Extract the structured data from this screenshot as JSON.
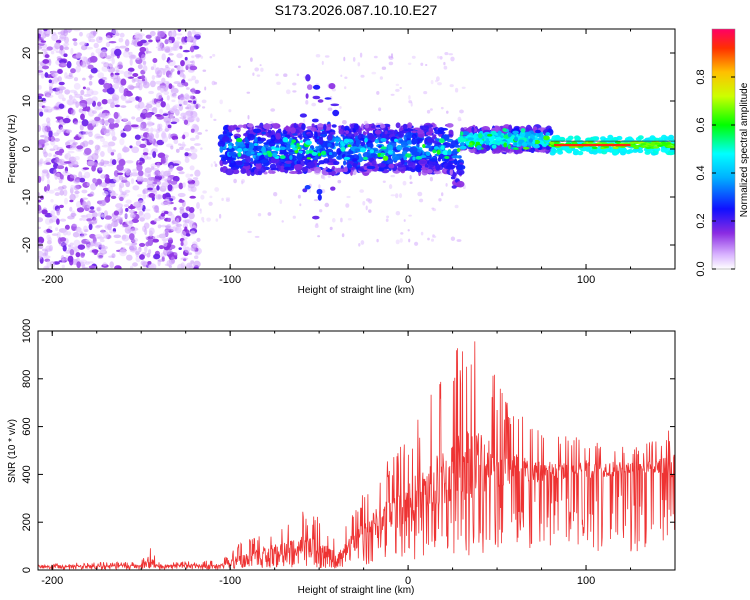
{
  "title": "S173.2026.087.10.10.E27",
  "chart_data": [
    {
      "type": "heatmap",
      "xlabel": "Height of straight line (km)",
      "ylabel": "Frequency (Hz)",
      "xlim": [
        -208,
        150
      ],
      "ylim": [
        -25,
        25
      ],
      "xticks": [
        -200,
        -100,
        0,
        100
      ],
      "yticks": [
        -20,
        -10,
        0,
        10,
        20
      ],
      "colorbar": {
        "label": "Normalized spectral amplitude",
        "range": [
          0,
          1
        ],
        "ticks": [
          0.0,
          0.2,
          0.4,
          0.6,
          0.8
        ],
        "tick_labels": [
          "0.0",
          "0.2",
          "0.4",
          "0.6",
          "0.8"
        ]
      },
      "band": {
        "noise_region_x": [
          -208,
          -118
        ],
        "signal_start_x": -105,
        "tone_x": [
          80,
          150
        ],
        "tone_frequency_hz": 0.8
      }
    },
    {
      "type": "line",
      "xlabel": "Height of straight line (km)",
      "ylabel": "SNR (10 * v/v)",
      "xlim": [
        -208,
        150
      ],
      "ylim": [
        0,
        1000
      ],
      "xticks": [
        -200,
        -100,
        0,
        100
      ],
      "yticks": [
        0,
        200,
        400,
        600,
        800,
        1000
      ],
      "series": [
        {
          "name": "SNR",
          "color": "#ee3333",
          "envelope": [
            {
              "x": -208,
              "base": 12,
              "peak": 30
            },
            {
              "x": -150,
              "base": 12,
              "peak": 35
            },
            {
              "x": -146,
              "base": 20,
              "peak": 105
            },
            {
              "x": -140,
              "base": 12,
              "peak": 35
            },
            {
              "x": -105,
              "base": 14,
              "peak": 40
            },
            {
              "x": -95,
              "base": 30,
              "peak": 110
            },
            {
              "x": -75,
              "base": 50,
              "peak": 180
            },
            {
              "x": -60,
              "base": 60,
              "peak": 250
            },
            {
              "x": -50,
              "base": 40,
              "peak": 220
            },
            {
              "x": -40,
              "base": 30,
              "peak": 130
            },
            {
              "x": -30,
              "base": 80,
              "peak": 260
            },
            {
              "x": -20,
              "base": 120,
              "peak": 400
            },
            {
              "x": -10,
              "base": 160,
              "peak": 480
            },
            {
              "x": 0,
              "base": 200,
              "peak": 580
            },
            {
              "x": 10,
              "base": 220,
              "peak": 700
            },
            {
              "x": 20,
              "base": 260,
              "peak": 820
            },
            {
              "x": 30,
              "base": 280,
              "peak": 980
            },
            {
              "x": 35,
              "base": 300,
              "peak": 1000
            },
            {
              "x": 45,
              "base": 320,
              "peak": 900
            },
            {
              "x": 55,
              "base": 340,
              "peak": 720
            },
            {
              "x": 70,
              "base": 360,
              "peak": 600
            },
            {
              "x": 90,
              "base": 380,
              "peak": 560
            },
            {
              "x": 110,
              "base": 390,
              "peak": 540
            },
            {
              "x": 130,
              "base": 390,
              "peak": 520
            },
            {
              "x": 150,
              "base": 390,
              "peak": 600
            }
          ]
        }
      ]
    }
  ]
}
